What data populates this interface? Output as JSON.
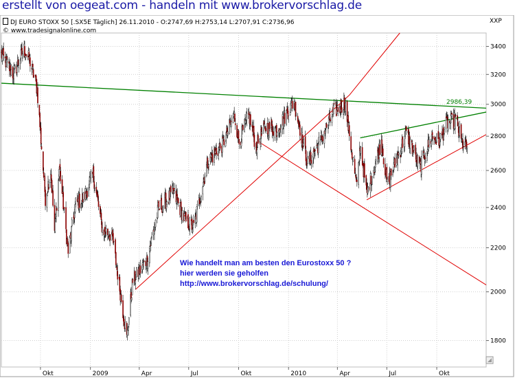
{
  "banner": "erstellt von oegeat.com - handeln mit www.brokervorschlag.de",
  "header": {
    "instrument": "DJ EURO STOXX 50 [.SX5E  Täglich] 26.11.2010 - O:2747,69 H:2753,14 L:2707,91 C:2736,96",
    "source": "www.tradesignalonline.com",
    "axis_unit": "XXP"
  },
  "annotation": {
    "line1": "Wie handelt man am besten  den Eurostoxx 50 ?",
    "line2": "hier werden sie geholfen",
    "line3": "http://www.brokervorschlag.de/schulung/"
  },
  "colors": {
    "banner": "#1a1aa6",
    "bull_candle": "#000000",
    "bear_candle": "#8b0000",
    "green_line": "#008000",
    "red_line": "#e00000",
    "annotation": "#1a1ad6",
    "grid": "#cfcfcf"
  },
  "chart_data": {
    "type": "candlestick",
    "x_type": "date",
    "x_range": [
      "2008-07-21",
      "2010-12-31"
    ],
    "ylim": [
      1700,
      3500
    ],
    "y_scale": "log",
    "y_ticks": [
      1800,
      2000,
      2200,
      2400,
      2600,
      2800,
      3000,
      3200,
      3400
    ],
    "x_ticks": [
      {
        "label": "Okt",
        "date": "2008-10-01"
      },
      {
        "label": "2009",
        "date": "2009-01-01"
      },
      {
        "label": "Apr",
        "date": "2009-04-01"
      },
      {
        "label": "Jul",
        "date": "2009-07-01"
      },
      {
        "label": "Okt",
        "date": "2009-10-01"
      },
      {
        "label": "2010",
        "date": "2010-01-01"
      },
      {
        "label": "Apr",
        "date": "2010-04-01"
      },
      {
        "label": "Jul",
        "date": "2010-07-01"
      },
      {
        "label": "Okt",
        "date": "2010-10-01"
      }
    ],
    "grid": true,
    "last_ohlc": {
      "date": "2010-11-26",
      "open": 2747.69,
      "high": 2753.14,
      "low": 2707.91,
      "close": 2736.96
    },
    "price_path": [
      {
        "date": "2008-07-21",
        "value": 3340
      },
      {
        "date": "2008-08-12",
        "value": 3200
      },
      {
        "date": "2008-09-01",
        "value": 3380
      },
      {
        "date": "2008-09-12",
        "value": 3290
      },
      {
        "date": "2008-09-25",
        "value": 3100
      },
      {
        "date": "2008-10-10",
        "value": 2450
      },
      {
        "date": "2008-10-20",
        "value": 2600
      },
      {
        "date": "2008-10-27",
        "value": 2280
      },
      {
        "date": "2008-11-05",
        "value": 2620
      },
      {
        "date": "2008-11-21",
        "value": 2180
      },
      {
        "date": "2008-12-05",
        "value": 2420
      },
      {
        "date": "2008-12-20",
        "value": 2450
      },
      {
        "date": "2009-01-06",
        "value": 2580
      },
      {
        "date": "2009-01-23",
        "value": 2290
      },
      {
        "date": "2009-02-10",
        "value": 2260
      },
      {
        "date": "2009-03-09",
        "value": 1810
      },
      {
        "date": "2009-03-20",
        "value": 2050
      },
      {
        "date": "2009-04-15",
        "value": 2140
      },
      {
        "date": "2009-05-06",
        "value": 2390
      },
      {
        "date": "2009-06-03",
        "value": 2480
      },
      {
        "date": "2009-06-25",
        "value": 2330
      },
      {
        "date": "2009-07-10",
        "value": 2300
      },
      {
        "date": "2009-08-05",
        "value": 2650
      },
      {
        "date": "2009-09-01",
        "value": 2750
      },
      {
        "date": "2009-09-23",
        "value": 2930
      },
      {
        "date": "2009-10-02",
        "value": 2770
      },
      {
        "date": "2009-10-20",
        "value": 2930
      },
      {
        "date": "2009-11-02",
        "value": 2740
      },
      {
        "date": "2009-11-20",
        "value": 2860
      },
      {
        "date": "2009-12-10",
        "value": 2840
      },
      {
        "date": "2010-01-11",
        "value": 3020
      },
      {
        "date": "2010-02-05",
        "value": 2640
      },
      {
        "date": "2010-02-25",
        "value": 2750
      },
      {
        "date": "2010-03-25",
        "value": 2950
      },
      {
        "date": "2010-04-15",
        "value": 3010
      },
      {
        "date": "2010-05-07",
        "value": 2500
      },
      {
        "date": "2010-05-13",
        "value": 2750
      },
      {
        "date": "2010-05-25",
        "value": 2470
      },
      {
        "date": "2010-06-21",
        "value": 2770
      },
      {
        "date": "2010-07-02",
        "value": 2520
      },
      {
        "date": "2010-08-06",
        "value": 2820
      },
      {
        "date": "2010-08-31",
        "value": 2620
      },
      {
        "date": "2010-09-22",
        "value": 2800
      },
      {
        "date": "2010-10-05",
        "value": 2760
      },
      {
        "date": "2010-10-20",
        "value": 2880
      },
      {
        "date": "2010-11-05",
        "value": 2900
      },
      {
        "date": "2010-11-16",
        "value": 2760
      },
      {
        "date": "2010-11-26",
        "value": 2737
      }
    ],
    "trendlines": [
      {
        "color": "green",
        "label": "2986,39",
        "points": [
          {
            "date": "2008-07-21",
            "value": 3140
          },
          {
            "date": "2010-12-31",
            "value": 2975
          }
        ]
      },
      {
        "color": "green",
        "label": "",
        "points": [
          {
            "date": "2010-05-13",
            "value": 2790
          },
          {
            "date": "2010-12-31",
            "value": 2950
          }
        ]
      },
      {
        "color": "red",
        "label": "",
        "points": [
          {
            "date": "2009-03-25",
            "value": 2010
          },
          {
            "date": "2010-04-23",
            "value": 3060
          }
        ]
      },
      {
        "color": "red",
        "label": "",
        "points": [
          {
            "date": "2010-04-23",
            "value": 3060
          },
          {
            "date": "2010-07-25",
            "value": 3500
          }
        ]
      },
      {
        "color": "red",
        "label": "",
        "points": [
          {
            "date": "2009-11-10",
            "value": 2760
          },
          {
            "date": "2010-12-31",
            "value": 2030
          }
        ]
      },
      {
        "color": "red",
        "label": "",
        "points": [
          {
            "date": "2010-05-25",
            "value": 2440
          },
          {
            "date": "2010-12-31",
            "value": 2810
          }
        ]
      }
    ],
    "value_label": {
      "text": "2986,39",
      "value": 2986.39
    }
  }
}
